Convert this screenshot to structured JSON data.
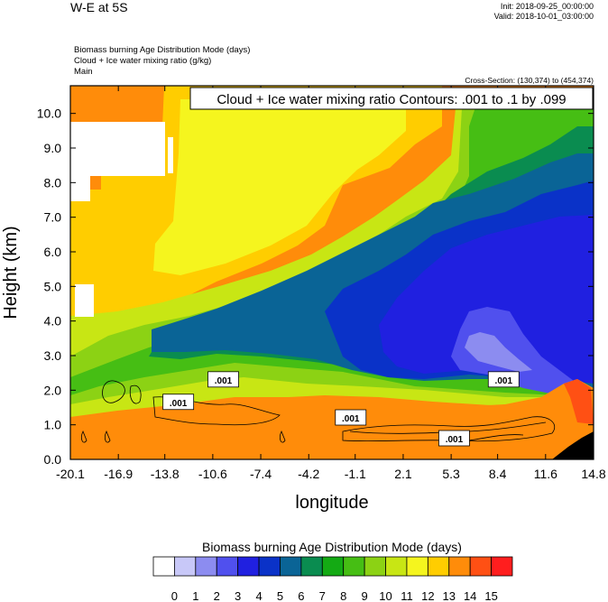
{
  "header": {
    "title_left": "W-E at 5S",
    "init": "Init: 2018-09-25_00:00:00",
    "valid": "Valid: 2018-10-01_03:00:00",
    "fields": [
      "Biomass burning Age Distribution Mode    (days)",
      "Cloud + Ice water mixing ratio    (g/kg)",
      "Main"
    ],
    "cross_section": "Cross-Section: (130,374) to (454,374)"
  },
  "chart_data": {
    "type": "heatmap",
    "title": "Cloud + Ice water mixing ratio Contours: .001 to .1 by .099",
    "xlabel": "longitude",
    "ylabel": "Height (km)",
    "xlim": [
      -20.1,
      14.8
    ],
    "ylim": [
      0.0,
      10.8
    ],
    "x_ticks": [
      "-20.1",
      "-16.9",
      "-13.8",
      "-10.6",
      "-7.4",
      "-4.2",
      "-1.1",
      "2.1",
      "5.3",
      "8.4",
      "11.6",
      "14.8"
    ],
    "y_ticks": [
      "0.0",
      "1.0",
      "2.0",
      "3.0",
      "4.0",
      "5.0",
      "6.0",
      "7.0",
      "8.0",
      "9.0",
      "10.0"
    ],
    "contour_labels": [
      {
        "text": ".001",
        "x": -12.9,
        "y": 1.65
      },
      {
        "text": ".001",
        "x": -9.9,
        "y": 2.3
      },
      {
        "text": ".001",
        "x": -1.4,
        "y": 1.2
      },
      {
        "text": ".001",
        "x": 5.5,
        "y": 0.6
      },
      {
        "text": ".001",
        "x": 8.8,
        "y": 2.3
      }
    ],
    "colorbar": {
      "title": "Biomass burning Age Distribution Mode  (days)",
      "labels": [
        "0",
        "1",
        "2",
        "3",
        "4",
        "5",
        "6",
        "7",
        "8",
        "9",
        "10",
        "11",
        "12",
        "13",
        "14",
        "15"
      ],
      "colors": [
        "#ffffff",
        "#c8c8f8",
        "#8c8cf0",
        "#5050ee",
        "#2020e0",
        "#0a32c8",
        "#0a6496",
        "#0a8c50",
        "#14aa14",
        "#46be14",
        "#8cd214",
        "#c8e614",
        "#f5f51e",
        "#ffcd00",
        "#ff8c0a",
        "#ff5014",
        "#ff1e1e"
      ]
    }
  }
}
